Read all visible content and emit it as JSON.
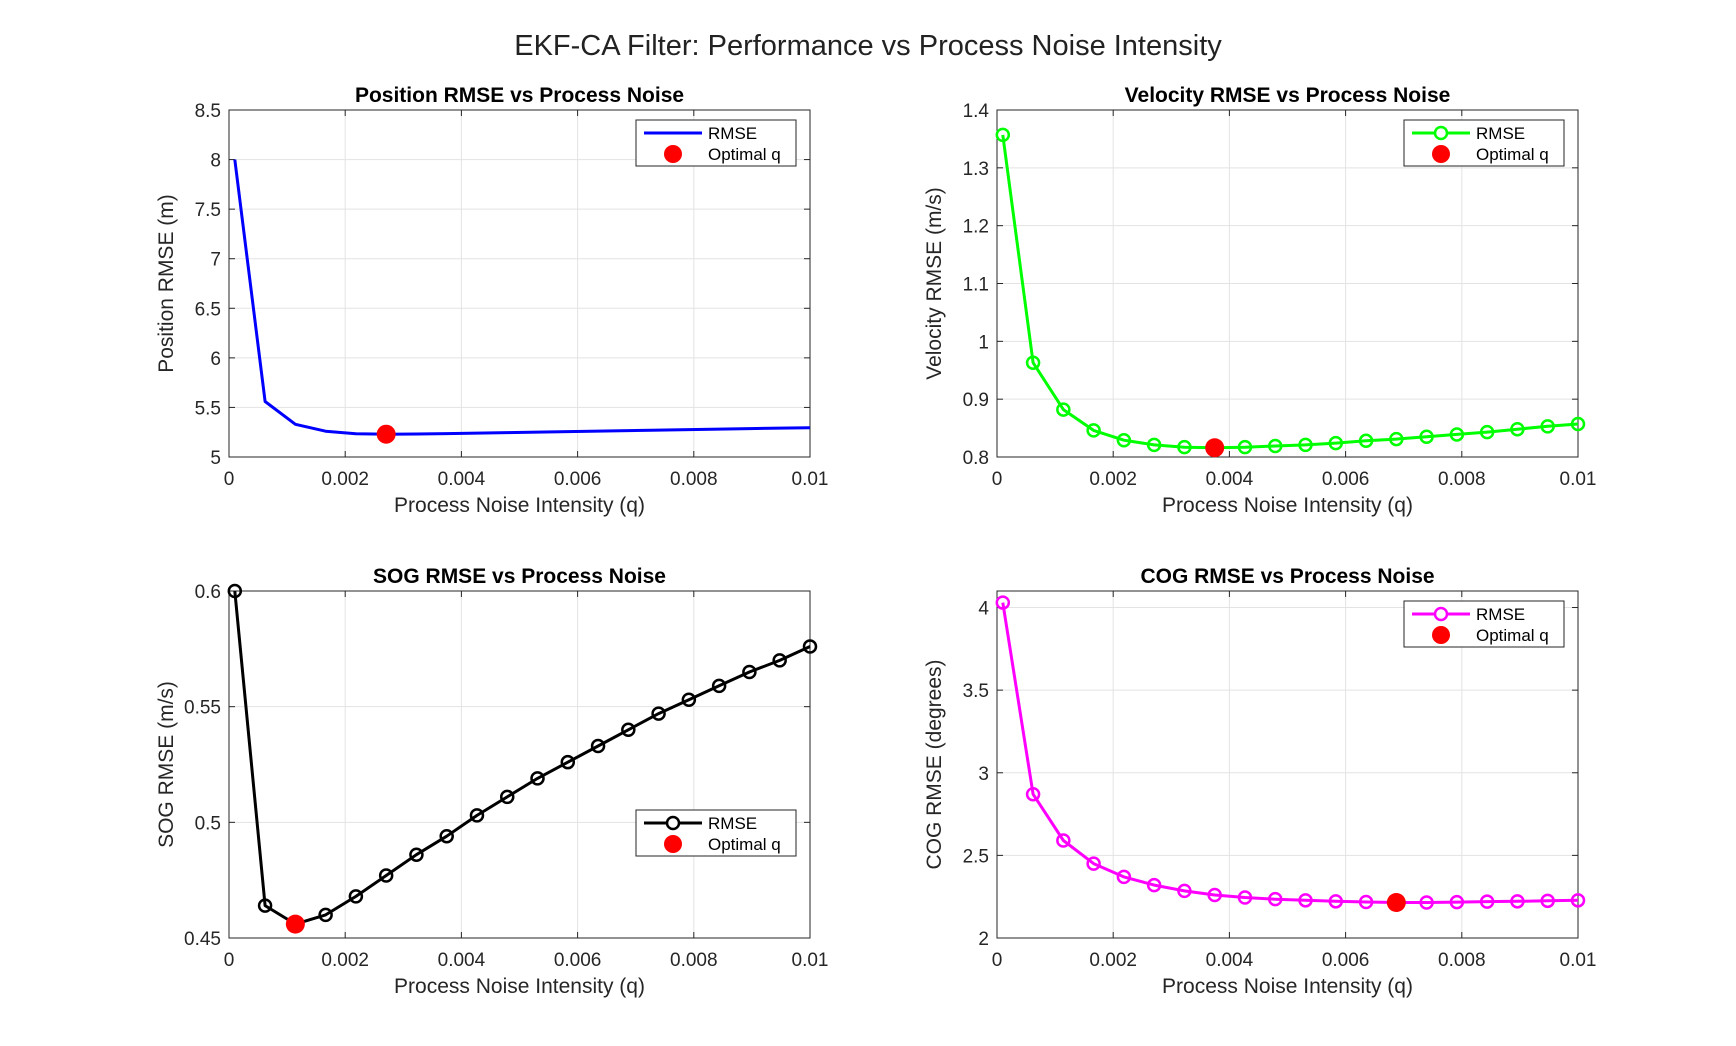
{
  "figure": {
    "title": "EKF-CA Filter: Performance vs Process Noise Intensity"
  },
  "chart_data": [
    {
      "type": "line",
      "title": "Position RMSE vs Process Noise",
      "xlabel": "Process Noise Intensity (q)",
      "ylabel": "Position RMSE (m)",
      "xlim": [
        0,
        0.01
      ],
      "ylim": [
        5,
        8.5
      ],
      "xticks": [
        "0",
        "0.002",
        "0.004",
        "0.006",
        "0.008",
        "0.01"
      ],
      "yticks": [
        "5",
        "5.5",
        "6",
        "6.5",
        "7",
        "7.5",
        "8",
        "8.5"
      ],
      "grid": true,
      "legend_position": "top-right",
      "series": [
        {
          "name": "RMSE",
          "color": "#0000ff",
          "marker": "none",
          "x": [
            0.0001,
            0.000621,
            0.001142,
            0.001663,
            0.002184,
            0.002705,
            0.003226,
            0.003747,
            0.004268,
            0.004789,
            0.00531,
            0.005831,
            0.006352,
            0.006873,
            0.007394,
            0.007915,
            0.008436,
            0.008957,
            0.009478,
            0.01
          ],
          "y": [
            8.0,
            5.56,
            5.33,
            5.26,
            5.235,
            5.23,
            5.232,
            5.236,
            5.241,
            5.246,
            5.251,
            5.256,
            5.261,
            5.266,
            5.271,
            5.276,
            5.281,
            5.286,
            5.291,
            5.296
          ]
        }
      ],
      "optimal": {
        "name": "Optimal q",
        "color": "#ff0000",
        "x": 0.002705,
        "y": 5.23
      }
    },
    {
      "type": "line",
      "title": "Velocity RMSE vs Process Noise",
      "xlabel": "Process Noise Intensity (q)",
      "ylabel": "Velocity RMSE (m/s)",
      "xlim": [
        0,
        0.01
      ],
      "ylim": [
        0.8,
        1.4
      ],
      "xticks": [
        "0",
        "0.002",
        "0.004",
        "0.006",
        "0.008",
        "0.01"
      ],
      "yticks": [
        "0.8",
        "0.9",
        "1",
        "1.1",
        "1.2",
        "1.3",
        "1.4"
      ],
      "grid": true,
      "legend_position": "top-right",
      "series": [
        {
          "name": "RMSE",
          "color": "#00ff00",
          "marker": "circle",
          "x": [
            0.0001,
            0.000621,
            0.001142,
            0.001663,
            0.002184,
            0.002705,
            0.003226,
            0.003747,
            0.004268,
            0.004789,
            0.00531,
            0.005831,
            0.006352,
            0.006873,
            0.007394,
            0.007915,
            0.008436,
            0.008957,
            0.009478,
            0.01
          ],
          "y": [
            1.357,
            0.963,
            0.882,
            0.846,
            0.829,
            0.821,
            0.817,
            0.816,
            0.817,
            0.819,
            0.821,
            0.824,
            0.828,
            0.831,
            0.835,
            0.839,
            0.843,
            0.848,
            0.853,
            0.857
          ]
        }
      ],
      "optimal": {
        "name": "Optimal q",
        "color": "#ff0000",
        "x": 0.003747,
        "y": 0.816
      }
    },
    {
      "type": "line",
      "title": "SOG RMSE vs Process Noise",
      "xlabel": "Process Noise Intensity (q)",
      "ylabel": "SOG RMSE (m/s)",
      "xlim": [
        0,
        0.01
      ],
      "ylim": [
        0.45,
        0.6
      ],
      "xticks": [
        "0",
        "0.002",
        "0.004",
        "0.006",
        "0.008",
        "0.01"
      ],
      "yticks": [
        "0.45",
        "0.5",
        "0.55",
        "0.6"
      ],
      "grid": true,
      "legend_position": "lower-right",
      "series": [
        {
          "name": "RMSE",
          "color": "#000000",
          "marker": "circle",
          "x": [
            0.0001,
            0.000621,
            0.001142,
            0.001663,
            0.002184,
            0.002705,
            0.003226,
            0.003747,
            0.004268,
            0.004789,
            0.00531,
            0.005831,
            0.006352,
            0.006873,
            0.007394,
            0.007915,
            0.008436,
            0.008957,
            0.009478,
            0.01
          ],
          "y": [
            0.6,
            0.464,
            0.456,
            0.46,
            0.468,
            0.477,
            0.486,
            0.494,
            0.503,
            0.511,
            0.519,
            0.526,
            0.533,
            0.54,
            0.547,
            0.553,
            0.559,
            0.565,
            0.57,
            0.576
          ]
        }
      ],
      "optimal": {
        "name": "Optimal q",
        "color": "#ff0000",
        "x": 0.001142,
        "y": 0.456
      }
    },
    {
      "type": "line",
      "title": "COG RMSE vs Process Noise",
      "xlabel": "Process Noise Intensity (q)",
      "ylabel": "COG RMSE (degrees)",
      "xlim": [
        0,
        0.01
      ],
      "ylim": [
        2,
        4.1
      ],
      "xticks": [
        "0",
        "0.002",
        "0.004",
        "0.006",
        "0.008",
        "0.01"
      ],
      "yticks": [
        "2",
        "2.5",
        "3",
        "3.5",
        "4"
      ],
      "grid": true,
      "legend_position": "top-right",
      "series": [
        {
          "name": "RMSE",
          "color": "#ff00ff",
          "marker": "circle",
          "x": [
            0.0001,
            0.000621,
            0.001142,
            0.001663,
            0.002184,
            0.002705,
            0.003226,
            0.003747,
            0.004268,
            0.004789,
            0.00531,
            0.005831,
            0.006352,
            0.006873,
            0.007394,
            0.007915,
            0.008436,
            0.008957,
            0.009478,
            0.01
          ],
          "y": [
            4.03,
            2.87,
            2.59,
            2.45,
            2.37,
            2.32,
            2.285,
            2.26,
            2.245,
            2.235,
            2.228,
            2.222,
            2.218,
            2.215,
            2.215,
            2.217,
            2.22,
            2.222,
            2.225,
            2.228
          ]
        }
      ],
      "optimal": {
        "name": "Optimal q",
        "color": "#ff0000",
        "x": 0.006873,
        "y": 2.215
      }
    }
  ]
}
